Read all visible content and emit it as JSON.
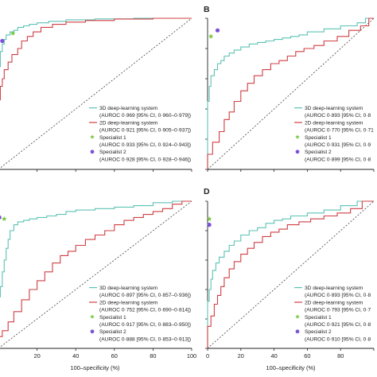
{
  "colors": {
    "dl3d": "#5cc2b6",
    "dl2d": "#cf3f44",
    "spec1": "#7ac943",
    "spec2": "#7b52d6",
    "axis": "#222222",
    "diag": "#444444"
  },
  "chart_data": [
    {
      "panel": "A",
      "type": "line",
      "panel_label": "",
      "xlabel": "",
      "ylabel": "",
      "xlim": [
        0,
        100
      ],
      "ylim": [
        0,
        100
      ],
      "x_ticks": [],
      "y_ticks": [],
      "series": [
        {
          "name": "3D deep-learning system",
          "auroc_label": "(AUROC 0·969 [95% CI, 0·960–0·979])",
          "points": [
            [
              0,
              0
            ],
            [
              0,
              35
            ],
            [
              0.5,
              55
            ],
            [
              1,
              68
            ],
            [
              2,
              78
            ],
            [
              3,
              83
            ],
            [
              4,
              86
            ],
            [
              6,
              89
            ],
            [
              8,
              91
            ],
            [
              10,
              92
            ],
            [
              13,
              94
            ],
            [
              16,
              95
            ],
            [
              20,
              96
            ],
            [
              26,
              97
            ],
            [
              35,
              98
            ],
            [
              50,
              99
            ],
            [
              70,
              99.6
            ],
            [
              100,
              100
            ]
          ]
        },
        {
          "name": "2D deep-learning system",
          "auroc_label": "(AUROC 0·921 [95% CI, 0·905–0·937])",
          "points": [
            [
              0,
              0
            ],
            [
              0,
              18
            ],
            [
              0.5,
              35
            ],
            [
              1,
              46
            ],
            [
              2,
              55
            ],
            [
              3,
              60
            ],
            [
              5,
              66
            ],
            [
              7,
              71
            ],
            [
              10,
              76
            ],
            [
              12,
              80
            ],
            [
              15,
              85
            ],
            [
              18,
              88
            ],
            [
              22,
              91
            ],
            [
              28,
              94
            ],
            [
              35,
              96
            ],
            [
              45,
              97.5
            ],
            [
              60,
              98.5
            ],
            [
              80,
              99.5
            ],
            [
              100,
              100
            ]
          ]
        }
      ],
      "points": [
        {
          "name": "Specialist 1",
          "auroc_label": "(AUROC 0·933 [95% CI, 0·924–0·943])",
          "x": 7.5,
          "y": 90
        },
        {
          "name": "Specialist 2",
          "auroc_label": "(AUROC 0·928 [95% CI, 0·928–0·946])",
          "x": 2,
          "y": 85
        }
      ]
    },
    {
      "panel": "B",
      "type": "line",
      "panel_label": "B",
      "xlabel": "",
      "ylabel": "",
      "xlim": [
        0,
        100
      ],
      "ylim": [
        0,
        100
      ],
      "x_ticks": [],
      "y_ticks": [],
      "series": [
        {
          "name": "3D deep-learning system",
          "auroc_label": "(AUROC 0·893 [95% CI, 0·8",
          "points": [
            [
              0,
              0
            ],
            [
              0,
              30
            ],
            [
              1,
              45
            ],
            [
              2,
              55
            ],
            [
              4,
              62
            ],
            [
              6,
              66
            ],
            [
              8,
              70
            ],
            [
              10,
              72
            ],
            [
              13,
              75
            ],
            [
              16,
              77
            ],
            [
              20,
              79
            ],
            [
              25,
              81
            ],
            [
              30,
              83
            ],
            [
              35,
              84
            ],
            [
              40,
              85
            ],
            [
              45,
              86
            ],
            [
              50,
              87
            ],
            [
              55,
              88
            ],
            [
              60,
              89
            ],
            [
              70,
              91
            ],
            [
              80,
              93
            ],
            [
              90,
              95
            ],
            [
              95,
              97
            ],
            [
              97,
              100
            ],
            [
              100,
              100
            ]
          ]
        },
        {
          "name": "2D deep-learning system",
          "auroc_label": "(AUROC 0·770 [95% CI, 0·71",
          "points": [
            [
              0,
              0
            ],
            [
              0,
              5
            ],
            [
              3,
              10
            ],
            [
              7,
              18
            ],
            [
              10,
              25
            ],
            [
              13,
              33
            ],
            [
              16,
              38
            ],
            [
              20,
              45
            ],
            [
              24,
              52
            ],
            [
              28,
              57
            ],
            [
              33,
              62
            ],
            [
              38,
              66
            ],
            [
              43,
              70
            ],
            [
              48,
              72
            ],
            [
              53,
              75
            ],
            [
              58,
              78
            ],
            [
              64,
              80
            ],
            [
              70,
              82
            ],
            [
              78,
              85
            ],
            [
              85,
              88
            ],
            [
              92,
              92
            ],
            [
              97,
              95
            ],
            [
              100,
              100
            ]
          ]
        }
      ],
      "points": [
        {
          "name": "Specialist 1",
          "auroc_label": "(AUROC 0·931 [95% CI, 0·9",
          "x": 2,
          "y": 88
        },
        {
          "name": "Specialist 2",
          "auroc_label": "(AUROC 0·899 [95% CI, 0·8",
          "x": 6,
          "y": 92
        }
      ]
    },
    {
      "panel": "C",
      "type": "line",
      "panel_label": "",
      "xlabel": "100–specificity (%)",
      "ylabel": "",
      "xlim": [
        0,
        100
      ],
      "ylim": [
        0,
        100
      ],
      "x_ticks": [
        "20",
        "40",
        "60",
        "80",
        "100"
      ],
      "y_ticks": [],
      "series": [
        {
          "name": "3D deep-learning system",
          "auroc_label": "(AUROC 0·897 [95% CI, 0·857–0·936])",
          "points": [
            [
              0,
              0
            ],
            [
              0,
              10
            ],
            [
              0.5,
              25
            ],
            [
              1,
              35
            ],
            [
              2,
              42
            ],
            [
              3,
              52
            ],
            [
              4,
              60
            ],
            [
              5,
              68
            ],
            [
              6,
              74
            ],
            [
              8,
              80
            ],
            [
              10,
              84
            ],
            [
              13,
              86
            ],
            [
              16,
              87
            ],
            [
              20,
              88
            ],
            [
              25,
              89
            ],
            [
              30,
              90
            ],
            [
              35,
              91
            ],
            [
              40,
              93
            ],
            [
              50,
              94
            ],
            [
              60,
              95
            ],
            [
              70,
              96
            ],
            [
              80,
              97
            ],
            [
              90,
              99
            ],
            [
              100,
              100
            ]
          ]
        },
        {
          "name": "2D deep-learning system",
          "auroc_label": "(AUROC 0·752 [95% CI, 0·690–0·814])",
          "points": [
            [
              0,
              0
            ],
            [
              0,
              5
            ],
            [
              2,
              8
            ],
            [
              5,
              12
            ],
            [
              8,
              18
            ],
            [
              12,
              25
            ],
            [
              16,
              33
            ],
            [
              20,
              40
            ],
            [
              24,
              46
            ],
            [
              28,
              52
            ],
            [
              32,
              58
            ],
            [
              36,
              63
            ],
            [
              40,
              66
            ],
            [
              45,
              70
            ],
            [
              50,
              74
            ],
            [
              55,
              77
            ],
            [
              60,
              80
            ],
            [
              65,
              84
            ],
            [
              70,
              87
            ],
            [
              75,
              89
            ],
            [
              80,
              91
            ],
            [
              85,
              93
            ],
            [
              90,
              95
            ],
            [
              95,
              98
            ],
            [
              100,
              100
            ]
          ]
        }
      ],
      "points": [
        {
          "name": "Specialist 1",
          "auroc_label": "(AUROC 0·917 [95% CI, 0·883–0·950])",
          "x": 3,
          "y": 88
        },
        {
          "name": "Specialist 2",
          "auroc_label": "(AUROC 0·888 [95% CI, 0·853–0·913])",
          "x": 0.5,
          "y": 89
        }
      ]
    },
    {
      "panel": "D",
      "type": "line",
      "panel_label": "D",
      "xlabel": "100–specificity (%)",
      "ylabel": "",
      "xlim": [
        0,
        100
      ],
      "ylim": [
        0,
        100
      ],
      "x_ticks": [
        "0",
        "20",
        "40",
        "60",
        "80"
      ],
      "y_ticks": [],
      "series": [
        {
          "name": "3D deep-learning system",
          "auroc_label": "(AUROC 0·893 [95% CI, 0·8",
          "points": [
            [
              0,
              0
            ],
            [
              0,
              20
            ],
            [
              1,
              32
            ],
            [
              2,
              40
            ],
            [
              3,
              47
            ],
            [
              5,
              53
            ],
            [
              7,
              58
            ],
            [
              10,
              62
            ],
            [
              13,
              66
            ],
            [
              16,
              70
            ],
            [
              20,
              73
            ],
            [
              25,
              77
            ],
            [
              30,
              80
            ],
            [
              35,
              82
            ],
            [
              40,
              85
            ],
            [
              45,
              87
            ],
            [
              50,
              88
            ],
            [
              60,
              90
            ],
            [
              70,
              92
            ],
            [
              80,
              94
            ],
            [
              90,
              97
            ],
            [
              100,
              100
            ]
          ]
        },
        {
          "name": "2D deep-learning system",
          "auroc_label": "(AUROC 0·793 [95% CI, 0·7",
          "points": [
            [
              0,
              0
            ],
            [
              0,
              8
            ],
            [
              2,
              15
            ],
            [
              4,
              22
            ],
            [
              6,
              30
            ],
            [
              8,
              36
            ],
            [
              10,
              42
            ],
            [
              13,
              48
            ],
            [
              16,
              54
            ],
            [
              20,
              59
            ],
            [
              24,
              64
            ],
            [
              28,
              68
            ],
            [
              33,
              72
            ],
            [
              38,
              76
            ],
            [
              43,
              79
            ],
            [
              48,
              81
            ],
            [
              55,
              84
            ],
            [
              62,
              86
            ],
            [
              70,
              88
            ],
            [
              78,
              90
            ],
            [
              86,
              92
            ],
            [
              93,
              95
            ],
            [
              100,
              100
            ]
          ]
        }
      ],
      "points": [
        {
          "name": "Specialist 1",
          "auroc_label": "(AUROC 0·921 [95% CI, 0·8",
          "x": 1,
          "y": 88
        },
        {
          "name": "Specialist 2",
          "auroc_label": "(AUROC 0·910 [95% CI, 0·8",
          "x": 1,
          "y": 84
        }
      ]
    }
  ]
}
